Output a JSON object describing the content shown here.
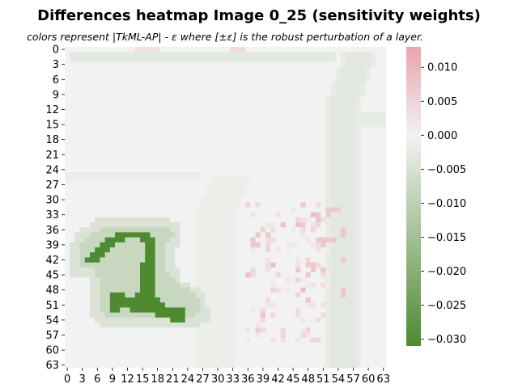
{
  "chart_data": {
    "type": "heatmap",
    "title": "Differences heatmap Image 0_25 (sensitivity weights)",
    "subtitle": "colors represent |TkML-AP| - ε where [±ε] is the robust perturbation of a layer.",
    "x_tick_labels": [
      "0",
      "3",
      "6",
      "9",
      "12",
      "15",
      "18",
      "21",
      "24",
      "27",
      "30",
      "33",
      "36",
      "39",
      "42",
      "45",
      "48",
      "51",
      "54",
      "57",
      "60",
      "63"
    ],
    "y_tick_labels": [
      "0",
      "3",
      "6",
      "9",
      "12",
      "15",
      "18",
      "21",
      "24",
      "27",
      "30",
      "33",
      "36",
      "39",
      "42",
      "45",
      "48",
      "51",
      "54",
      "57",
      "60",
      "63"
    ],
    "grid_size": 64,
    "colorbar": {
      "ticks": [
        "0.010",
        "0.005",
        "0.000",
        "−0.005",
        "−0.010",
        "−0.015",
        "−0.020",
        "−0.025",
        "−0.030"
      ],
      "tick_values": [
        0.01,
        0.005,
        0.0,
        -0.005,
        -0.01,
        -0.015,
        -0.02,
        -0.025,
        -0.03
      ],
      "vmin": -0.031,
      "vmax": 0.013,
      "color_min": "#4e8a30",
      "color_mid": "#f2f2f2",
      "color_max": "#e8a4ae"
    },
    "regions": [
      {
        "label": "background",
        "value": 0.0
      },
      {
        "label": "outer frame",
        "value": -0.0025,
        "rows": [
          1,
          1
        ],
        "cols": [
          1,
          53
        ]
      },
      {
        "label": "outer frame right",
        "value": -0.0025,
        "rows": [
          1,
          63
        ],
        "cols": [
          53,
          60
        ]
      },
      {
        "label": "inner frame",
        "value": -0.0015,
        "rows": [
          25,
          25
        ],
        "cols": [
          0,
          26
        ]
      },
      {
        "label": "inner frame right",
        "value": -0.0015,
        "rows": [
          25,
          63
        ],
        "cols": [
          26,
          34
        ]
      },
      {
        "label": "digit halo",
        "value": -0.005,
        "rows": [
          34,
          55
        ],
        "cols": [
          2,
          26
        ]
      },
      {
        "label": "digit stroke",
        "value": -0.031,
        "rows": [
          37,
          54
        ],
        "cols": [
          4,
          24
        ]
      },
      {
        "label": "positive noise",
        "value": 0.006,
        "rows": [
          31,
          58
        ],
        "cols": [
          36,
          56
        ]
      }
    ]
  }
}
